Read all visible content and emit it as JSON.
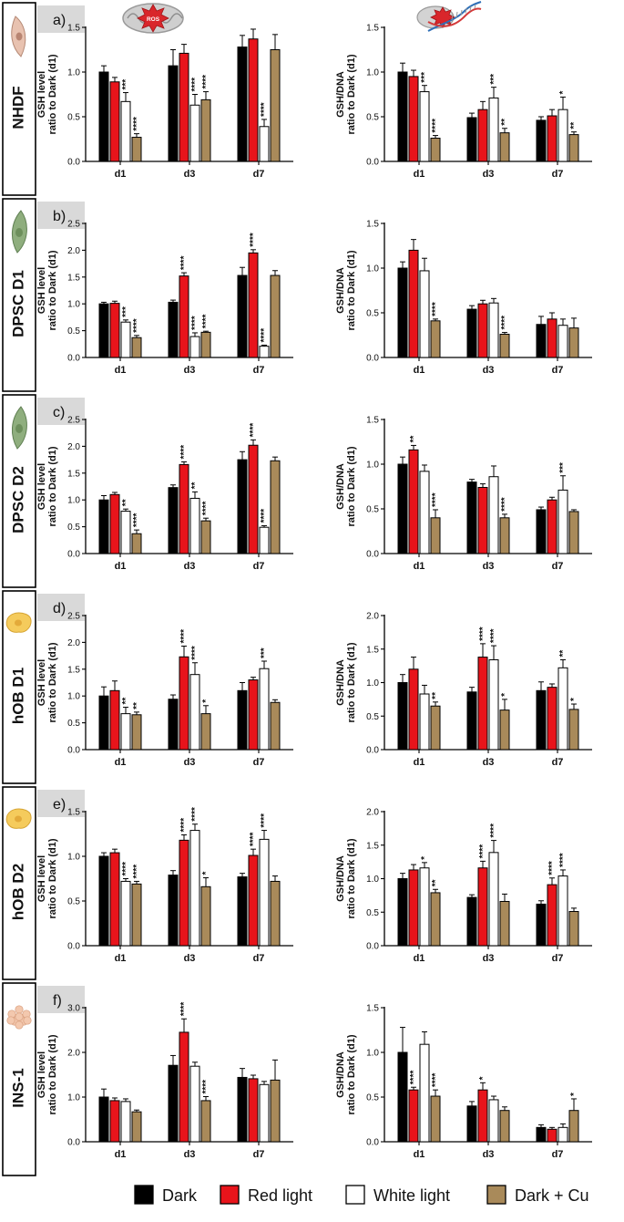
{
  "legend": [
    {
      "label": "Dark",
      "color": "#000000"
    },
    {
      "label": "Red light",
      "color": "#e8141b"
    },
    {
      "label": "White light",
      "color": "#ffffff"
    },
    {
      "label": "Dark + Cu",
      "color": "#a98a5a"
    }
  ],
  "panel_icons": [
    "mitochondrion-ros-icon",
    "dna-ros-icon"
  ],
  "cell_icons": [
    "fibroblast-icon",
    "dpsc-icon",
    "dpsc-icon",
    "osteoblast-icon",
    "osteoblast-icon",
    "ins1-cluster-icon"
  ],
  "chart_data": [
    {
      "type": "bar",
      "row_label": "NHDF",
      "panel": "a)",
      "ylabel": [
        "GSH level",
        "ratio to Dark (d1)"
      ],
      "ylim": [
        0,
        1.5
      ],
      "yticks": [
        "0.0",
        "0.5",
        "1.0",
        "1.5"
      ],
      "categories": [
        "d1",
        "d3",
        "d7"
      ],
      "series": [
        {
          "name": "Dark",
          "values": [
            1.0,
            1.07,
            1.28
          ],
          "err": [
            0.07,
            0.18,
            0.13
          ]
        },
        {
          "name": "Red light",
          "values": [
            0.89,
            1.21,
            1.37
          ],
          "err": [
            0.05,
            0.1,
            0.11
          ]
        },
        {
          "name": "White light",
          "values": [
            0.67,
            0.63,
            0.39
          ],
          "err": [
            0.1,
            0.12,
            0.08
          ]
        },
        {
          "name": "Dark + Cu",
          "values": [
            0.27,
            0.69,
            1.25
          ],
          "err": [
            0.04,
            0.09,
            0.17
          ]
        }
      ],
      "sig": [
        [
          "",
          "",
          "",
          ""
        ],
        [
          "",
          "",
          "****",
          "****"
        ],
        [
          "",
          "",
          "****",
          ""
        ]
      ],
      "sig_extra": [
        [
          "",
          "",
          "***",
          "****"
        ]
      ]
    },
    {
      "type": "bar",
      "ylabel": [
        "GSH/DNA",
        "ratio to Dark (d1)"
      ],
      "ylim": [
        0,
        1.5
      ],
      "yticks": [
        "0.0",
        "0.5",
        "1.0",
        "1.5"
      ],
      "categories": [
        "d1",
        "d3",
        "d7"
      ],
      "series": [
        {
          "name": "Dark",
          "values": [
            1.0,
            0.49,
            0.46
          ],
          "err": [
            0.1,
            0.05,
            0.04
          ]
        },
        {
          "name": "Red light",
          "values": [
            0.95,
            0.58,
            0.51
          ],
          "err": [
            0.07,
            0.09,
            0.07
          ]
        },
        {
          "name": "White light",
          "values": [
            0.78,
            0.71,
            0.58
          ],
          "err": [
            0.07,
            0.12,
            0.14
          ]
        },
        {
          "name": "Dark + Cu",
          "values": [
            0.26,
            0.32,
            0.3
          ],
          "err": [
            0.03,
            0.05,
            0.03
          ]
        }
      ],
      "sig": [
        [
          "",
          "",
          "***",
          "****"
        ],
        [
          "",
          "",
          "***",
          "**"
        ],
        [
          "",
          "",
          "*",
          "**"
        ]
      ]
    },
    {
      "type": "bar",
      "row_label": "DPSC D1",
      "panel": "b)",
      "ylabel": [
        "GSH level",
        "ratio to Dark (d1)"
      ],
      "ylim": [
        0,
        2.5
      ],
      "yticks": [
        "0.0",
        "0.5",
        "1.0",
        "1.5",
        "2.0",
        "2.5"
      ],
      "categories": [
        "d1",
        "d3",
        "d7"
      ],
      "series": [
        {
          "name": "Dark",
          "values": [
            1.0,
            1.03,
            1.53
          ],
          "err": [
            0.03,
            0.04,
            0.15
          ]
        },
        {
          "name": "Red light",
          "values": [
            1.01,
            1.52,
            1.95
          ],
          "err": [
            0.04,
            0.06,
            0.06
          ]
        },
        {
          "name": "White light",
          "values": [
            0.66,
            0.39,
            0.21
          ],
          "err": [
            0.04,
            0.07,
            0.02
          ]
        },
        {
          "name": "Dark + Cu",
          "values": [
            0.37,
            0.47,
            1.53
          ],
          "err": [
            0.04,
            0.02,
            0.09
          ]
        }
      ],
      "sig": [
        [
          "",
          "",
          "***",
          "****"
        ],
        [
          "",
          "****",
          "****",
          "****"
        ],
        [
          "",
          "****",
          "****",
          ""
        ]
      ]
    },
    {
      "type": "bar",
      "ylabel": [
        "GSH/DNA",
        "ratio to Dark (d1)"
      ],
      "ylim": [
        0,
        1.5
      ],
      "yticks": [
        "0.0",
        "0.5",
        "1.0",
        "1.5"
      ],
      "categories": [
        "d1",
        "d3",
        "d7"
      ],
      "series": [
        {
          "name": "Dark",
          "values": [
            1.0,
            0.54,
            0.37
          ],
          "err": [
            0.07,
            0.04,
            0.09
          ]
        },
        {
          "name": "Red light",
          "values": [
            1.2,
            0.6,
            0.43
          ],
          "err": [
            0.12,
            0.04,
            0.07
          ]
        },
        {
          "name": "White light",
          "values": [
            0.97,
            0.61,
            0.36
          ],
          "err": [
            0.14,
            0.05,
            0.07
          ]
        },
        {
          "name": "Dark + Cu",
          "values": [
            0.41,
            0.26,
            0.33
          ],
          "err": [
            0.02,
            0.02,
            0.11
          ]
        }
      ],
      "sig": [
        [
          "",
          "",
          "",
          "****"
        ],
        [
          "",
          "",
          "",
          "****"
        ],
        [
          "",
          "",
          "",
          ""
        ]
      ]
    },
    {
      "type": "bar",
      "row_label": "DPSC D2",
      "panel": "c)",
      "ylabel": [
        "GSH level",
        "ratio to Dark (d1)"
      ],
      "ylim": [
        0,
        2.5
      ],
      "yticks": [
        "0.0",
        "0.5",
        "1.0",
        "1.5",
        "2.0",
        "2.5"
      ],
      "categories": [
        "d1",
        "d3",
        "d7"
      ],
      "series": [
        {
          "name": "Dark",
          "values": [
            1.0,
            1.23,
            1.75
          ],
          "err": [
            0.08,
            0.05,
            0.15
          ]
        },
        {
          "name": "Red light",
          "values": [
            1.1,
            1.66,
            2.02
          ],
          "err": [
            0.04,
            0.05,
            0.1
          ]
        },
        {
          "name": "White light",
          "values": [
            0.79,
            1.03,
            0.49
          ],
          "err": [
            0.04,
            0.12,
            0.03
          ]
        },
        {
          "name": "Dark + Cu",
          "values": [
            0.37,
            0.61,
            1.73
          ],
          "err": [
            0.07,
            0.05,
            0.07
          ]
        }
      ],
      "sig": [
        [
          "",
          "",
          "**",
          "****"
        ],
        [
          "",
          "****",
          "**",
          "****"
        ],
        [
          "",
          "****",
          "****",
          ""
        ]
      ]
    },
    {
      "type": "bar",
      "ylabel": [
        "GSH/DNA",
        "ratio to Dark (d1)"
      ],
      "ylim": [
        0,
        1.5
      ],
      "yticks": [
        "0.0",
        "0.5",
        "1.0",
        "1.5"
      ],
      "categories": [
        "d1",
        "d3",
        "d7"
      ],
      "series": [
        {
          "name": "Dark",
          "values": [
            1.0,
            0.8,
            0.49
          ],
          "err": [
            0.08,
            0.03,
            0.03
          ]
        },
        {
          "name": "Red light",
          "values": [
            1.16,
            0.74,
            0.6
          ],
          "err": [
            0.05,
            0.04,
            0.03
          ]
        },
        {
          "name": "White light",
          "values": [
            0.92,
            0.86,
            0.71
          ],
          "err": [
            0.07,
            0.12,
            0.16
          ]
        },
        {
          "name": "Dark + Cu",
          "values": [
            0.4,
            0.4,
            0.47
          ],
          "err": [
            0.09,
            0.04,
            0.02
          ]
        }
      ],
      "sig": [
        [
          "",
          "**",
          "",
          "****"
        ],
        [
          "",
          "",
          "",
          "****"
        ],
        [
          "",
          "",
          "***",
          ""
        ]
      ]
    },
    {
      "type": "bar",
      "row_label": "hOB D1",
      "panel": "d)",
      "ylabel": [
        "GSH level",
        "ratio to Dark (d1)"
      ],
      "ylim": [
        0,
        2.5
      ],
      "yticks": [
        "0.0",
        "0.5",
        "1.0",
        "1.5",
        "2.0",
        "2.5"
      ],
      "categories": [
        "d1",
        "d3",
        "d7"
      ],
      "series": [
        {
          "name": "Dark",
          "values": [
            1.0,
            0.94,
            1.1
          ],
          "err": [
            0.17,
            0.08,
            0.15
          ]
        },
        {
          "name": "Red light",
          "values": [
            1.1,
            1.73,
            1.3
          ],
          "err": [
            0.18,
            0.2,
            0.05
          ]
        },
        {
          "name": "White light",
          "values": [
            0.67,
            1.4,
            1.51
          ],
          "err": [
            0.12,
            0.22,
            0.14
          ]
        },
        {
          "name": "Dark + Cu",
          "values": [
            0.65,
            0.67,
            0.88
          ],
          "err": [
            0.05,
            0.15,
            0.05
          ]
        }
      ],
      "sig": [
        [
          "",
          "",
          "**",
          "**"
        ],
        [
          "",
          "****",
          "****",
          "*"
        ],
        [
          "",
          "",
          "***",
          ""
        ]
      ]
    },
    {
      "type": "bar",
      "ylabel": [
        "GSH/DNA",
        "ratio to Dark (d1)"
      ],
      "ylim": [
        0,
        2.0
      ],
      "yticks": [
        "0.0",
        "0.5",
        "1.0",
        "1.5",
        "2.0"
      ],
      "categories": [
        "d1",
        "d3",
        "d7"
      ],
      "series": [
        {
          "name": "Dark",
          "values": [
            1.0,
            0.86,
            0.88
          ],
          "err": [
            0.12,
            0.07,
            0.13
          ]
        },
        {
          "name": "Red light",
          "values": [
            1.2,
            1.38,
            0.93
          ],
          "err": [
            0.18,
            0.2,
            0.05
          ]
        },
        {
          "name": "White light",
          "values": [
            0.83,
            1.34,
            1.22
          ],
          "err": [
            0.13,
            0.21,
            0.12
          ]
        },
        {
          "name": "Dark + Cu",
          "values": [
            0.65,
            0.59,
            0.6
          ],
          "err": [
            0.06,
            0.16,
            0.08
          ]
        }
      ],
      "sig": [
        [
          "",
          "",
          "",
          "**"
        ],
        [
          "",
          "****",
          "****",
          "*"
        ],
        [
          "",
          "",
          "**",
          "*"
        ]
      ]
    },
    {
      "type": "bar",
      "row_label": "hOB D2",
      "panel": "e)",
      "ylabel": [
        "GSH level",
        "ratio to Dark (d1)"
      ],
      "ylim": [
        0,
        1.5
      ],
      "yticks": [
        "0.0",
        "0.5",
        "1.0",
        "1.5"
      ],
      "categories": [
        "d1",
        "d3",
        "d7"
      ],
      "series": [
        {
          "name": "Dark",
          "values": [
            1.0,
            0.79,
            0.77
          ],
          "err": [
            0.04,
            0.05,
            0.04
          ]
        },
        {
          "name": "Red light",
          "values": [
            1.04,
            1.18,
            1.01
          ],
          "err": [
            0.04,
            0.06,
            0.07
          ]
        },
        {
          "name": "White light",
          "values": [
            0.72,
            1.29,
            1.19
          ],
          "err": [
            0.03,
            0.07,
            0.1
          ]
        },
        {
          "name": "Dark + Cu",
          "values": [
            0.69,
            0.66,
            0.72
          ],
          "err": [
            0.03,
            0.1,
            0.06
          ]
        }
      ],
      "sig": [
        [
          "",
          "",
          "****",
          "****"
        ],
        [
          "",
          "****",
          "****",
          "*"
        ],
        [
          "",
          "****",
          "****",
          ""
        ]
      ]
    },
    {
      "type": "bar",
      "ylabel": [
        "GSH/DNA",
        "ratio to Dark (d1)"
      ],
      "ylim": [
        0,
        2.0
      ],
      "yticks": [
        "0.0",
        "0.5",
        "1.0",
        "1.5",
        "2.0"
      ],
      "categories": [
        "d1",
        "d3",
        "d7"
      ],
      "series": [
        {
          "name": "Dark",
          "values": [
            1.0,
            0.72,
            0.62
          ],
          "err": [
            0.08,
            0.04,
            0.05
          ]
        },
        {
          "name": "Red light",
          "values": [
            1.13,
            1.16,
            0.91
          ],
          "err": [
            0.08,
            0.1,
            0.1
          ]
        },
        {
          "name": "White light",
          "values": [
            1.16,
            1.39,
            1.04
          ],
          "err": [
            0.08,
            0.18,
            0.09
          ]
        },
        {
          "name": "Dark + Cu",
          "values": [
            0.79,
            0.66,
            0.51
          ],
          "err": [
            0.05,
            0.11,
            0.05
          ]
        }
      ],
      "sig": [
        [
          "",
          "",
          "*",
          "**"
        ],
        [
          "",
          "****",
          "****",
          ""
        ],
        [
          "",
          "****",
          "****",
          ""
        ]
      ]
    },
    {
      "type": "bar",
      "row_label": "INS-1",
      "panel": "f)",
      "ylabel": [
        "GSH level",
        "ratio to Dark (d1)"
      ],
      "ylim": [
        0,
        3.0
      ],
      "yticks": [
        "0.0",
        "1.0",
        "2.0",
        "3.0"
      ],
      "categories": [
        "d1",
        "d3",
        "d7"
      ],
      "series": [
        {
          "name": "Dark",
          "values": [
            1.0,
            1.71,
            1.44
          ],
          "err": [
            0.18,
            0.22,
            0.2
          ]
        },
        {
          "name": "Red light",
          "values": [
            0.92,
            2.45,
            1.41
          ],
          "err": [
            0.06,
            0.3,
            0.08
          ]
        },
        {
          "name": "White light",
          "values": [
            0.9,
            1.69,
            1.28
          ],
          "err": [
            0.06,
            0.09,
            0.07
          ]
        },
        {
          "name": "Dark + Cu",
          "values": [
            0.67,
            0.92,
            1.38
          ],
          "err": [
            0.04,
            0.09,
            0.45
          ]
        }
      ],
      "sig": [
        [
          "",
          "",
          "",
          ""
        ],
        [
          "",
          "****",
          "",
          "****"
        ],
        [
          "",
          "",
          "",
          ""
        ]
      ]
    },
    {
      "type": "bar",
      "ylabel": [
        "GSH/DNA",
        "ratio to Dark (d1)"
      ],
      "ylim": [
        0,
        1.5
      ],
      "yticks": [
        "0.0",
        "0.5",
        "1.0",
        "1.5"
      ],
      "categories": [
        "d1",
        "d3",
        "d7"
      ],
      "series": [
        {
          "name": "Dark",
          "values": [
            1.0,
            0.4,
            0.16
          ],
          "err": [
            0.28,
            0.05,
            0.03
          ]
        },
        {
          "name": "Red light",
          "values": [
            0.58,
            0.58,
            0.14
          ],
          "err": [
            0.03,
            0.08,
            0.02
          ]
        },
        {
          "name": "White light",
          "values": [
            1.09,
            0.47,
            0.16
          ],
          "err": [
            0.14,
            0.04,
            0.04
          ]
        },
        {
          "name": "Dark + Cu",
          "values": [
            0.51,
            0.35,
            0.35
          ],
          "err": [
            0.07,
            0.04,
            0.13
          ]
        }
      ],
      "sig": [
        [
          "",
          "****",
          "",
          "****"
        ],
        [
          "",
          "*",
          "",
          ""
        ],
        [
          "",
          "",
          "",
          "*"
        ]
      ]
    }
  ]
}
